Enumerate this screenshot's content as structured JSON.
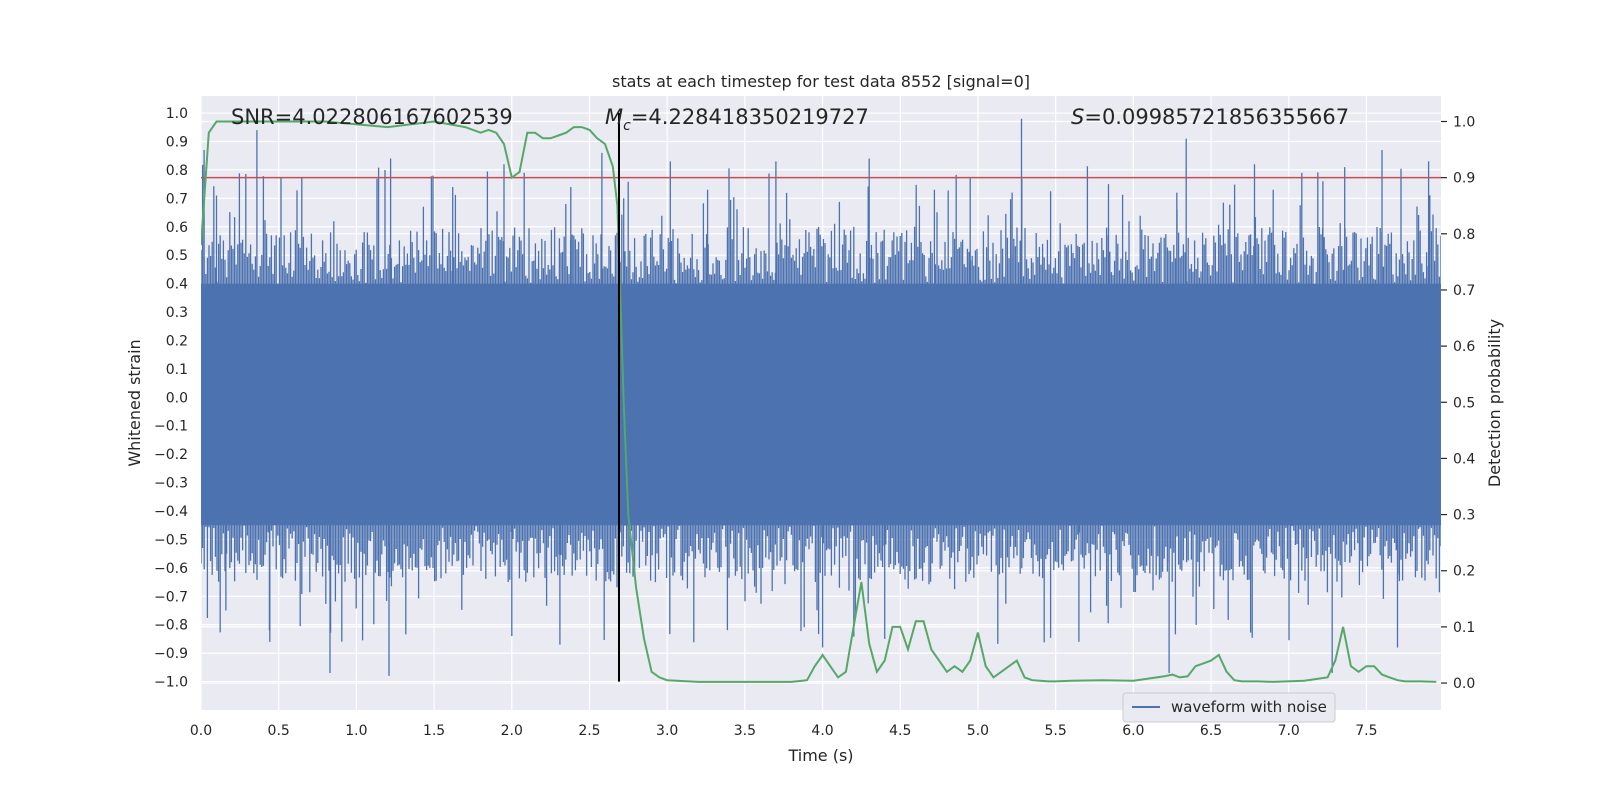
{
  "chart_data": {
    "type": "line",
    "title": "stats at each timestep for test data 8552 [signal=0]",
    "xlabel": "Time (s)",
    "ylabel_left": "Whitened strain",
    "ylabel_right": "Detection probability",
    "xlim": [
      0.0,
      7.98
    ],
    "ylim_left": [
      -1.1,
      1.06
    ],
    "ylim_right": [
      -0.048,
      1.0454
    ],
    "x_ticks": [
      0.0,
      0.5,
      1.0,
      1.5,
      2.0,
      2.5,
      3.0,
      3.5,
      4.0,
      4.5,
      5.0,
      5.5,
      6.0,
      6.5,
      7.0,
      7.5
    ],
    "x_tick_labels": [
      "0.0",
      "0.5",
      "1.0",
      "1.5",
      "2.0",
      "2.5",
      "3.0",
      "3.5",
      "4.0",
      "4.5",
      "5.0",
      "5.5",
      "6.0",
      "6.5",
      "7.0",
      "7.5"
    ],
    "y_left_ticks": [
      1.0,
      0.9,
      0.8,
      0.7,
      0.6,
      0.5,
      0.4,
      0.3,
      0.2,
      0.1,
      0.0,
      -0.1,
      -0.2,
      -0.3,
      -0.4,
      -0.5,
      -0.6,
      -0.7,
      -0.8,
      -0.9,
      -1.0
    ],
    "y_left_tick_labels": [
      "1.0",
      "0.9",
      "0.8",
      "0.7",
      "0.6",
      "0.5",
      "0.4",
      "0.3",
      "0.2",
      "0.1",
      "0.0",
      "−0.1",
      "−0.2",
      "−0.3",
      "−0.4",
      "−0.5",
      "−0.6",
      "−0.7",
      "−0.8",
      "−0.9",
      "−1.0"
    ],
    "y_right_ticks": [
      1.0,
      0.9,
      0.8,
      0.7,
      0.6,
      0.5,
      0.4,
      0.3,
      0.2,
      0.1,
      0.0
    ],
    "y_right_tick_labels": [
      "1.0",
      "0.9",
      "0.8",
      "0.7",
      "0.6",
      "0.5",
      "0.4",
      "0.3",
      "0.2",
      "0.1",
      "0.0"
    ],
    "annotations": {
      "snr": "SNR=4.022806167602539",
      "mc_symbol": "M",
      "mc_subscript": "c",
      "mc_value": "=4.228418350219727",
      "s_symbol": "S",
      "s_value": "=0.09985721856355667"
    },
    "threshold": {
      "value_right": 0.9,
      "color": "#c44e52"
    },
    "marker_time": 2.69,
    "series": [
      {
        "name": "waveform with noise",
        "color": "#4c72b0",
        "axis": "left",
        "approx_envelope": {
          "band_upper": 0.4,
          "band_lower": -0.45,
          "note": "dense noise approximated; notable peaks listed",
          "peaks": [
            [
              0.02,
              0.87
            ],
            [
              0.1,
              0.71
            ],
            [
              0.36,
              0.94
            ],
            [
              1.22,
              0.84
            ],
            [
              1.62,
              0.74
            ],
            [
              1.95,
              0.82
            ],
            [
              2.38,
              0.74
            ],
            [
              2.58,
              0.86
            ],
            [
              2.72,
              0.7
            ],
            [
              3.02,
              0.83
            ],
            [
              3.26,
              0.73
            ],
            [
              3.7,
              0.83
            ],
            [
              4.3,
              0.84
            ],
            [
              4.72,
              0.73
            ],
            [
              4.95,
              0.77
            ],
            [
              5.22,
              0.72
            ],
            [
              5.28,
              0.98
            ],
            [
              5.84,
              0.75
            ],
            [
              6.28,
              0.72
            ],
            [
              6.34,
              0.91
            ],
            [
              6.78,
              0.82
            ],
            [
              6.9,
              0.73
            ],
            [
              7.22,
              0.76
            ],
            [
              7.36,
              0.81
            ],
            [
              7.6,
              0.87
            ],
            [
              7.9,
              0.83
            ]
          ],
          "troughs": [
            [
              0.16,
              -0.75
            ],
            [
              0.44,
              -0.82
            ],
            [
              0.83,
              -0.97
            ],
            [
              1.21,
              -0.98
            ],
            [
              2.0,
              -0.84
            ],
            [
              2.31,
              -0.87
            ],
            [
              4.0,
              -0.88
            ],
            [
              4.4,
              -0.85
            ],
            [
              5.65,
              -0.86
            ],
            [
              6.23,
              -0.97
            ],
            [
              7.28,
              -0.97
            ],
            [
              7.7,
              -0.88
            ]
          ]
        }
      },
      {
        "name": "detection probability",
        "color": "#55a868",
        "axis": "right",
        "x": [
          0.0,
          0.05,
          0.1,
          0.2,
          0.4,
          0.8,
          1.2,
          1.5,
          1.7,
          1.8,
          1.85,
          1.9,
          1.95,
          2.0,
          2.05,
          2.1,
          2.15,
          2.2,
          2.25,
          2.3,
          2.35,
          2.4,
          2.45,
          2.5,
          2.55,
          2.6,
          2.65,
          2.68,
          2.72,
          2.75,
          2.8,
          2.85,
          2.9,
          2.95,
          3.0,
          3.2,
          3.5,
          3.8,
          3.9,
          3.95,
          4.0,
          4.05,
          4.1,
          4.15,
          4.2,
          4.25,
          4.3,
          4.35,
          4.4,
          4.45,
          4.5,
          4.55,
          4.6,
          4.65,
          4.7,
          4.75,
          4.8,
          4.85,
          4.9,
          4.95,
          5.0,
          5.05,
          5.1,
          5.15,
          5.2,
          5.25,
          5.3,
          5.35,
          5.4,
          5.45,
          5.5,
          5.6,
          5.8,
          6.0,
          6.2,
          6.25,
          6.3,
          6.35,
          6.4,
          6.45,
          6.5,
          6.55,
          6.6,
          6.65,
          6.7,
          6.75,
          6.8,
          6.9,
          7.1,
          7.25,
          7.3,
          7.35,
          7.4,
          7.45,
          7.5,
          7.55,
          7.6,
          7.65,
          7.7,
          7.75,
          7.85,
          7.95
        ],
        "y": [
          0.78,
          0.98,
          1.0,
          1.0,
          1.0,
          1.0,
          0.99,
          1.0,
          0.99,
          0.98,
          0.985,
          0.98,
          0.96,
          0.9,
          0.91,
          0.98,
          0.98,
          0.97,
          0.97,
          0.975,
          0.98,
          0.99,
          0.99,
          0.985,
          0.97,
          0.96,
          0.92,
          0.85,
          0.5,
          0.3,
          0.17,
          0.08,
          0.02,
          0.01,
          0.005,
          0.002,
          0.002,
          0.002,
          0.005,
          0.03,
          0.05,
          0.03,
          0.01,
          0.02,
          0.1,
          0.18,
          0.07,
          0.02,
          0.04,
          0.1,
          0.1,
          0.06,
          0.11,
          0.11,
          0.06,
          0.04,
          0.02,
          0.03,
          0.02,
          0.04,
          0.09,
          0.03,
          0.01,
          0.02,
          0.03,
          0.04,
          0.01,
          0.005,
          0.004,
          0.003,
          0.003,
          0.004,
          0.005,
          0.004,
          0.012,
          0.015,
          0.01,
          0.012,
          0.03,
          0.035,
          0.04,
          0.05,
          0.02,
          0.005,
          0.003,
          0.003,
          0.003,
          0.002,
          0.004,
          0.01,
          0.04,
          0.1,
          0.03,
          0.02,
          0.03,
          0.03,
          0.015,
          0.01,
          0.005,
          0.003,
          0.003,
          0.002
        ]
      }
    ],
    "legend": {
      "label": "waveform with noise",
      "location": "lower-right"
    },
    "grid": true
  }
}
